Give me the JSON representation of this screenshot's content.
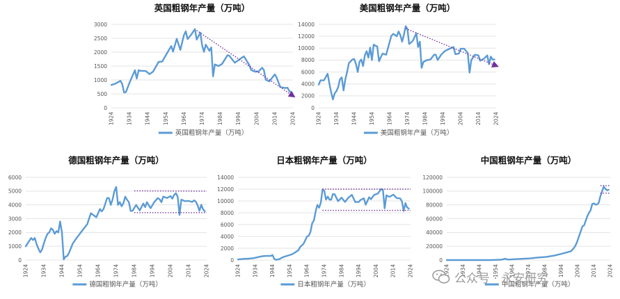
{
  "colors": {
    "series": "#5b9bd5",
    "trend": "#7030a0",
    "grid": "#e3e3e3"
  },
  "watermark": {
    "text": "公众号 · 永安研究",
    "icon": "wechat-icon"
  },
  "chart_data": [
    {
      "id": "uk",
      "type": "line",
      "title": "英国粗钢年产量（万吨）",
      "legend": "英国粗钢年产量（万吨）",
      "legend_position": "bottom",
      "grid": true,
      "ylim": [
        0,
        3000
      ],
      "yticks": [
        0,
        500,
        1000,
        1500,
        2000,
        2500,
        3000
      ],
      "xticks": [
        "1924",
        "1934",
        "1944",
        "1954",
        "1964",
        "1974",
        "1984",
        "1994",
        "2004",
        "2014",
        "2024"
      ],
      "x": [
        1924,
        1926,
        1928,
        1929,
        1930,
        1931,
        1932,
        1934,
        1936,
        1937,
        1938,
        1939,
        1940,
        1943,
        1945,
        1947,
        1950,
        1952,
        1955,
        1957,
        1958,
        1960,
        1962,
        1964,
        1965,
        1966,
        1968,
        1970,
        1971,
        1973,
        1974,
        1975,
        1976,
        1978,
        1979,
        1980,
        1981,
        1983,
        1985,
        1988,
        1989,
        1992,
        1995,
        1997,
        2000,
        2001,
        2003,
        2005,
        2007,
        2008,
        2009,
        2011,
        2014,
        2015,
        2017,
        2019,
        2020,
        2021,
        2022,
        2023
      ],
      "y": [
        820,
        860,
        930,
        970,
        850,
        550,
        560,
        900,
        1200,
        1350,
        1050,
        1350,
        1330,
        1320,
        1210,
        1300,
        1650,
        1660,
        2000,
        2220,
        2020,
        2480,
        2080,
        2620,
        2750,
        2470,
        2630,
        2830,
        2450,
        2700,
        2240,
        2010,
        2270,
        2050,
        2170,
        1130,
        1560,
        1500,
        1580,
        1890,
        1870,
        1620,
        1760,
        1850,
        1530,
        1360,
        1300,
        1300,
        1440,
        1360,
        1010,
        950,
        1200,
        1090,
        750,
        720,
        710,
        720,
        600,
        560
      ],
      "trend": {
        "x": [
          1971,
          2024
        ],
        "y": [
          2780,
          430
        ],
        "arrow": true
      }
    },
    {
      "id": "us",
      "type": "line",
      "title": "美国粗钢年产量（万吨）",
      "legend": "美国粗钢年产量（万吨）",
      "legend_position": "bottom",
      "grid": true,
      "ylim": [
        0,
        14000
      ],
      "yticks": [
        0,
        2000,
        4000,
        6000,
        8000,
        10000,
        12000,
        14000
      ],
      "xticks": [
        "1924",
        "1934",
        "1944",
        "1954",
        "1964",
        "1974",
        "1984",
        "1994",
        "2004",
        "2014",
        "2024"
      ],
      "x": [
        1924,
        1925,
        1927,
        1929,
        1930,
        1931,
        1932,
        1933,
        1934,
        1935,
        1936,
        1937,
        1938,
        1939,
        1940,
        1941,
        1943,
        1944,
        1945,
        1946,
        1947,
        1948,
        1949,
        1950,
        1951,
        1952,
        1953,
        1954,
        1955,
        1956,
        1957,
        1958,
        1959,
        1960,
        1962,
        1965,
        1966,
        1968,
        1969,
        1970,
        1971,
        1972,
        1973,
        1974,
        1975,
        1977,
        1979,
        1980,
        1981,
        1982,
        1983,
        1985,
        1987,
        1989,
        1990,
        1991,
        1993,
        1995,
        1997,
        2000,
        2001,
        2003,
        2004,
        2006,
        2008,
        2009,
        2010,
        2012,
        2014,
        2015,
        2017,
        2019,
        2020,
        2021,
        2022,
        2023
      ],
      "y": [
        3900,
        4600,
        4600,
        5700,
        4100,
        2600,
        1400,
        2400,
        2800,
        3500,
        4800,
        5100,
        2900,
        4800,
        6000,
        7500,
        8100,
        8200,
        7300,
        6000,
        7700,
        8100,
        7000,
        8800,
        9500,
        8400,
        10100,
        8000,
        10600,
        10400,
        10300,
        7800,
        8500,
        9100,
        8900,
        12100,
        12400,
        12000,
        12800,
        12200,
        11100,
        12200,
        13700,
        13200,
        10700,
        11200,
        12500,
        10200,
        11100,
        6700,
        7700,
        8000,
        8100,
        8900,
        8900,
        8000,
        8900,
        9500,
        9800,
        10200,
        9000,
        9100,
        9900,
        9900,
        9200,
        5900,
        8000,
        8900,
        8800,
        7900,
        8200,
        8800,
        7300,
        8600,
        8100,
        8100
      ],
      "trend": {
        "x": [
          1973,
          2024
        ],
        "y": [
          13300,
          7050
        ],
        "arrow": true
      }
    },
    {
      "id": "de",
      "type": "line",
      "title": "德国粗钢年产量（万吨）",
      "legend": "德国粗钢年产量（万吨）",
      "legend_position": "bottom",
      "grid": true,
      "ylim": [
        0,
        6000
      ],
      "yticks": [
        0,
        1000,
        2000,
        3000,
        4000,
        5000,
        6000
      ],
      "xticks": [
        "1924",
        "1934",
        "1944",
        "1954",
        "1964",
        "1974",
        "1984",
        "1994",
        "2004",
        "2014",
        "2024"
      ],
      "x": [
        1924,
        1925,
        1927,
        1928,
        1929,
        1930,
        1931,
        1932,
        1933,
        1934,
        1935,
        1936,
        1937,
        1938,
        1939,
        1940,
        1941,
        1942,
        1943,
        1944,
        1945,
        1946,
        1947,
        1948,
        1950,
        1952,
        1955,
        1958,
        1960,
        1961,
        1963,
        1965,
        1966,
        1967,
        1969,
        1970,
        1971,
        1972,
        1973,
        1974,
        1975,
        1976,
        1977,
        1978,
        1979,
        1980,
        1981,
        1982,
        1983,
        1985,
        1987,
        1989,
        1990,
        1991,
        1992,
        1993,
        1995,
        1997,
        1998,
        1999,
        2000,
        2002,
        2004,
        2005,
        2006,
        2007,
        2008,
        2009,
        2010,
        2012,
        2014,
        2016,
        2017,
        2018,
        2019,
        2020,
        2021,
        2022,
        2023
      ],
      "y": [
        1000,
        1200,
        1600,
        1450,
        1600,
        1150,
        830,
        560,
        750,
        1200,
        1600,
        1900,
        2000,
        2300,
        2200,
        1900,
        2100,
        2000,
        2800,
        2000,
        50,
        250,
        300,
        550,
        1200,
        1580,
        2100,
        2600,
        3400,
        3300,
        3100,
        3700,
        3530,
        3700,
        4500,
        4500,
        4000,
        4400,
        5000,
        5300,
        4000,
        4200,
        3900,
        4130,
        4600,
        4370,
        4200,
        3560,
        3570,
        4000,
        3600,
        4100,
        3840,
        4200,
        3970,
        3760,
        4200,
        4500,
        4400,
        4200,
        4600,
        4500,
        4640,
        4450,
        4720,
        4850,
        4580,
        3270,
        4380,
        4270,
        4290,
        4210,
        4330,
        4240,
        3970,
        3570,
        4010,
        3680,
        3540
      ],
      "trend": {
        "x": [
          1984,
          2024
        ],
        "y": [
          5020,
          5000
        ],
        "arrow": false
      },
      "trend2": {
        "x": [
          1984,
          2024
        ],
        "y": [
          3440,
          3440
        ],
        "arrow": false
      }
    },
    {
      "id": "jp",
      "type": "line",
      "title": "日本粗钢年产量（万吨）",
      "legend": "日本粗钢年产量（万吨）",
      "legend_position": "bottom",
      "grid": true,
      "ylim": [
        0,
        14000
      ],
      "yticks": [
        0,
        2000,
        4000,
        6000,
        8000,
        10000,
        12000,
        14000
      ],
      "xticks": [
        "1924",
        "1934",
        "1944",
        "1954",
        "1964",
        "1974",
        "1984",
        "1994",
        "2004",
        "2014",
        "2024"
      ],
      "x": [
        1924,
        1927,
        1930,
        1933,
        1936,
        1938,
        1940,
        1943,
        1944,
        1945,
        1946,
        1947,
        1948,
        1950,
        1953,
        1955,
        1957,
        1959,
        1960,
        1962,
        1964,
        1965,
        1966,
        1967,
        1968,
        1969,
        1970,
        1971,
        1972,
        1973,
        1974,
        1975,
        1976,
        1977,
        1978,
        1979,
        1980,
        1982,
        1984,
        1986,
        1988,
        1990,
        1992,
        1994,
        1995,
        1997,
        1998,
        2000,
        2001,
        2003,
        2005,
        2007,
        2008,
        2009,
        2010,
        2011,
        2012,
        2014,
        2016,
        2018,
        2019,
        2020,
        2021,
        2022,
        2023
      ],
      "y": [
        100,
        200,
        230,
        320,
        520,
        650,
        700,
        700,
        860,
        200,
        55,
        95,
        170,
        480,
        770,
        940,
        1260,
        1660,
        2210,
        2750,
        3980,
        4120,
        4780,
        6220,
        6690,
        8220,
        9330,
        8860,
        9690,
        11930,
        11710,
        10230,
        10740,
        10240,
        10210,
        11170,
        11140,
        9950,
        10560,
        9830,
        10570,
        11030,
        9810,
        9830,
        10160,
        10450,
        9350,
        10640,
        10290,
        11050,
        11250,
        12020,
        11870,
        8750,
        10960,
        10760,
        10720,
        11070,
        10480,
        10430,
        9930,
        8320,
        9640,
        8920,
        8700
      ],
      "trend": {
        "x": [
          1973,
          2024
        ],
        "y": [
          12000,
          12000
        ],
        "arrow": false
      },
      "trend2": {
        "x": [
          1973,
          2024
        ],
        "y": [
          8400,
          8400
        ],
        "arrow": false
      }
    },
    {
      "id": "cn",
      "type": "line",
      "title": "中国粗钢年产量（万吨）",
      "legend": "中国粗钢年产量（万吨）",
      "legend_position": "bottom",
      "grid": true,
      "ylim": [
        0,
        120000
      ],
      "yticks": [
        0,
        20000,
        40000,
        60000,
        80000,
        100000,
        120000
      ],
      "xticks": [
        "1924",
        "1934",
        "1944",
        "1954",
        "1964",
        "1974",
        "1984",
        "1994",
        "2004",
        "2014",
        "2024"
      ],
      "x": [
        1924,
        1930,
        1940,
        1949,
        1952,
        1957,
        1958,
        1959,
        1960,
        1961,
        1962,
        1965,
        1970,
        1975,
        1978,
        1980,
        1985,
        1990,
        1995,
        2000,
        2002,
        2003,
        2004,
        2005,
        2006,
        2007,
        2008,
        2009,
        2010,
        2011,
        2012,
        2013,
        2014,
        2015,
        2016,
        2017,
        2018,
        2019,
        2020,
        2021,
        2022,
        2023
      ],
      "y": [
        5,
        10,
        30,
        16,
        135,
        535,
        800,
        1390,
        1870,
        870,
        670,
        1220,
        1780,
        2390,
        3180,
        3710,
        4680,
        6630,
        9540,
        12850,
        18220,
        22230,
        28290,
        35320,
        41910,
        48930,
        50300,
        57220,
        63720,
        68530,
        72390,
        81310,
        82230,
        80380,
        80760,
        83170,
        92830,
        99630,
        106480,
        103280,
        101300,
        101910
      ],
      "trend": {
        "x": [
          2018,
          2024
        ],
        "y": [
          108000,
          108000
        ],
        "arrow": false
      },
      "trend2": {
        "x": [
          2018,
          2024
        ],
        "y": [
          97000,
          97000
        ],
        "arrow": false
      }
    }
  ]
}
